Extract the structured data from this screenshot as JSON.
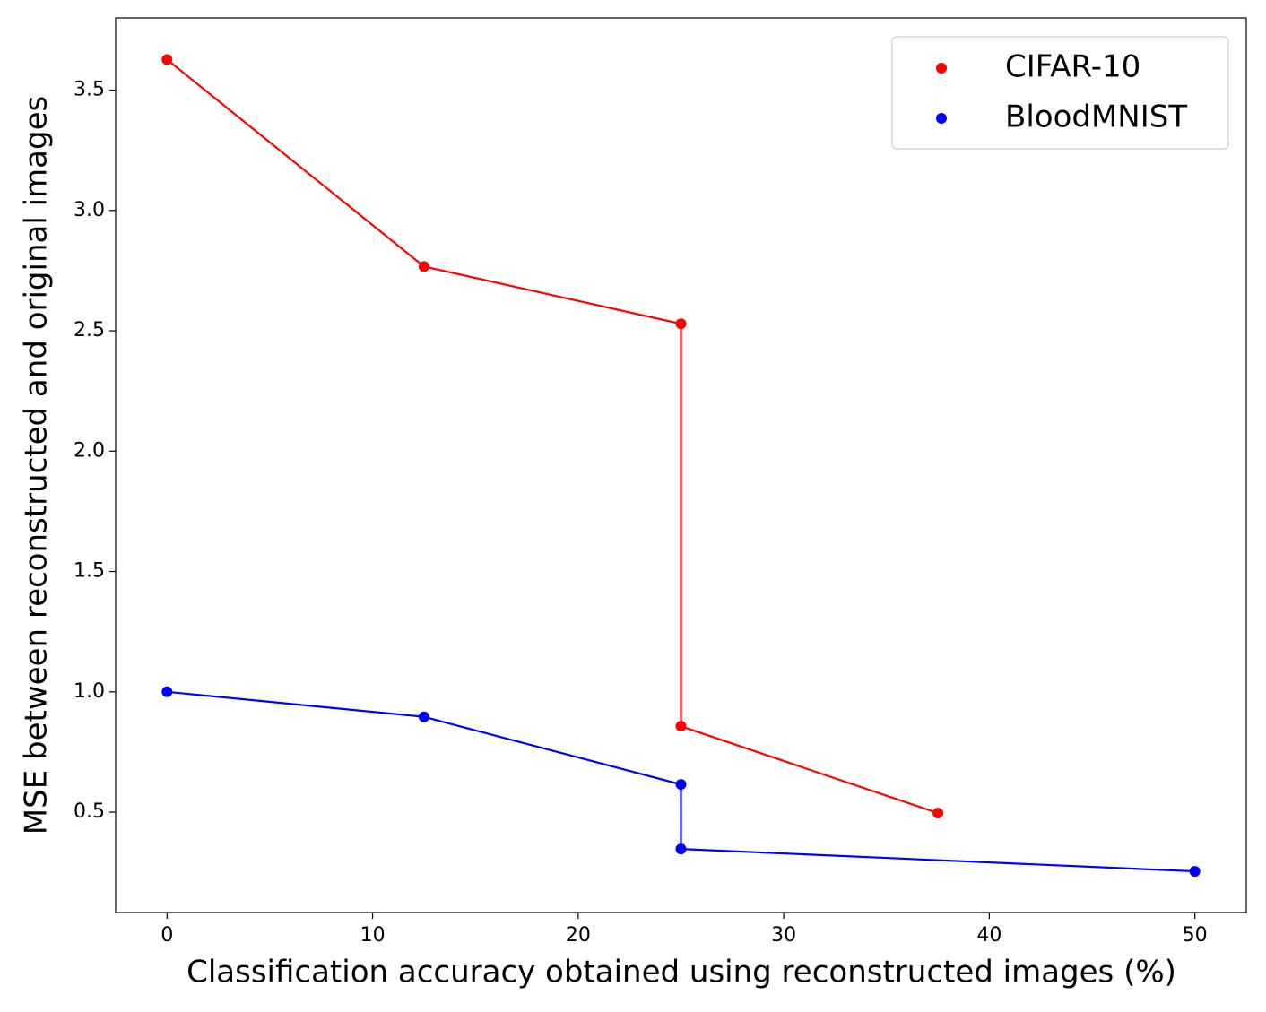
{
  "chart_data": {
    "type": "line",
    "x_label": "Classification accuracy obtained using reconstructed images (%)",
    "y_label": "MSE between reconstructed and original images",
    "series": [
      {
        "name": "CIFAR-10",
        "color": "#ff0000",
        "x": [
          0,
          12.5,
          25,
          25,
          37.5
        ],
        "values": [
          3.627,
          2.767,
          2.529,
          0.857,
          0.496
        ]
      },
      {
        "name": "BloodMNIST",
        "color": "#0000ff",
        "x": [
          0,
          12.5,
          25,
          25,
          50
        ],
        "values": [
          1.0,
          0.896,
          0.615,
          0.347,
          0.254
        ]
      }
    ],
    "xlim": [
      -2.5,
      52.5
    ],
    "ylim": [
      0.083,
      3.8
    ],
    "xticks": [
      0,
      10,
      20,
      30,
      40,
      50
    ],
    "yticks": [
      0.5,
      {
        "value": 1.0,
        "label": "1.0"
      },
      1.5,
      {
        "value": 2.0,
        "label": "2.0"
      },
      2.5,
      {
        "value": 3.0,
        "label": "3.0"
      },
      3.5
    ],
    "legend": "upper right",
    "grid": false
  }
}
